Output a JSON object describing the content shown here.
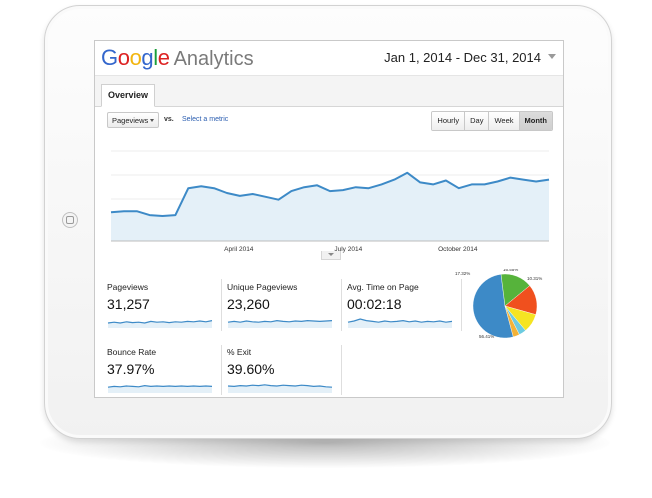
{
  "header": {
    "logo_letters": [
      "G",
      "o",
      "o",
      "g",
      "l",
      "e"
    ],
    "product": "Analytics",
    "date_range": "Jan 1, 2014 - Dec 31, 2014"
  },
  "tabs": [
    {
      "label": "Overview",
      "active": true
    }
  ],
  "controls": {
    "metric_select": "Pageviews",
    "vs_label": "vs.",
    "select_metric_link": "Select a metric",
    "period_buttons": [
      {
        "label": "Hourly",
        "active": false
      },
      {
        "label": "Day",
        "active": false
      },
      {
        "label": "Week",
        "active": false
      },
      {
        "label": "Month",
        "active": true
      }
    ]
  },
  "colors": {
    "line": "#3d8ac7",
    "area": "#e4f0f8",
    "logo_blue": "#3366cc",
    "logo_red": "#dd2222",
    "logo_yellow": "#f2b50f",
    "logo_green": "#1a9e3a"
  },
  "chart_data": [
    {
      "type": "area",
      "x_tick_labels": [
        "April 2014",
        "July 2014",
        "October 2014"
      ],
      "x_tick_positions": [
        3,
        6,
        9
      ],
      "ylim": [
        0,
        100
      ],
      "grid": true,
      "values": [
        30,
        31,
        31,
        27,
        26,
        27,
        55,
        57,
        55,
        50,
        47,
        49,
        46,
        43,
        52,
        56,
        58,
        52,
        53,
        56,
        55,
        59,
        64,
        71,
        61,
        59,
        63,
        55,
        59,
        59,
        62,
        66,
        64,
        62,
        64
      ]
    },
    {
      "type": "pie",
      "values": [
        56.41,
        17.32,
        16.55,
        10.31,
        4.0,
        3.5
      ],
      "data_labels": [
        "56.41%",
        "17.32%",
        "16.55%",
        "10.31%",
        "",
        ""
      ],
      "colors": [
        "#3d8ac7",
        "#56b33b",
        "#f0501e",
        "#f5e422",
        "#6ccbe0",
        "#f2b238"
      ]
    }
  ],
  "scorecards": [
    {
      "label": "Pageviews",
      "value": "31,257",
      "spark": [
        50,
        52,
        50,
        53,
        51,
        52,
        50,
        54,
        52,
        53,
        51,
        53,
        52,
        54,
        53,
        55,
        53,
        56
      ]
    },
    {
      "label": "Unique Pageviews",
      "value": "23,260",
      "spark": [
        52,
        54,
        52,
        55,
        53,
        52,
        54,
        53,
        56,
        54,
        53,
        55,
        54,
        56,
        55,
        54,
        55,
        56
      ]
    },
    {
      "label": "Avg. Time on Page",
      "value": "00:02:18",
      "spark": [
        52,
        55,
        60,
        56,
        54,
        52,
        55,
        53,
        54,
        56,
        53,
        55,
        52,
        54,
        53,
        55,
        52,
        54
      ]
    },
    {
      "label": "Bounce Rate",
      "value": "37.97%",
      "spark": [
        52,
        54,
        53,
        55,
        54,
        53,
        56,
        54,
        55,
        54,
        55,
        54,
        55,
        54,
        55,
        54,
        55,
        54
      ]
    },
    {
      "label": "% Exit",
      "value": "39.60%",
      "spark": [
        55,
        54,
        56,
        55,
        57,
        56,
        58,
        56,
        55,
        57,
        56,
        55,
        57,
        56,
        54,
        55,
        53,
        52
      ]
    }
  ]
}
